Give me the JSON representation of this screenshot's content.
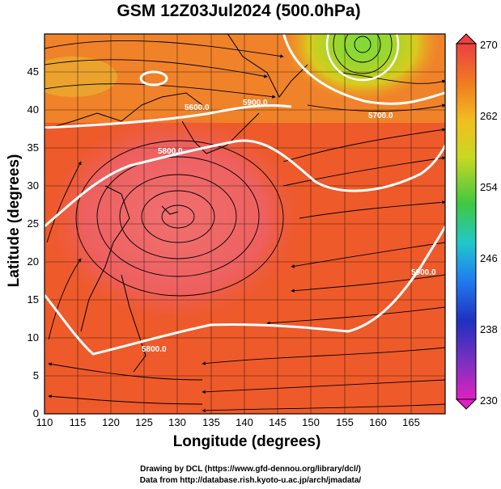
{
  "title": "GSM 12Z03Jul2024 (500.0hPa)",
  "credits": {
    "line1": "Drawing by DCL (https://www.gfd-dennou.org/library/dcl/)",
    "line2": "Data from http://database.rish.kyoto-u.ac.jp/arch/jmadata/"
  },
  "axes": {
    "xlabel": "Longitude (degrees)",
    "ylabel": "Latitude  (degrees)",
    "x_ticks": [
      "110",
      "115",
      "120",
      "125",
      "130",
      "135",
      "140",
      "145",
      "150",
      "155",
      "160",
      "165"
    ],
    "y_ticks": [
      "0",
      "5",
      "10",
      "15",
      "20",
      "25",
      "30",
      "35",
      "40",
      "45"
    ],
    "x_range": [
      110,
      170
    ],
    "y_range": [
      0,
      50
    ]
  },
  "colorbar": {
    "range": [
      230,
      270
    ],
    "labels": [
      "270",
      "262",
      "254",
      "246",
      "238",
      "230"
    ]
  },
  "contours": {
    "labels": [
      "5600.0",
      "5800.0",
      "5700.0",
      "5800.0",
      "5900.0",
      "5900.0"
    ]
  },
  "colors": {
    "high_field": "#ef5a2a",
    "core": "#f06a6a",
    "cold_low": "#7cd83a"
  }
}
